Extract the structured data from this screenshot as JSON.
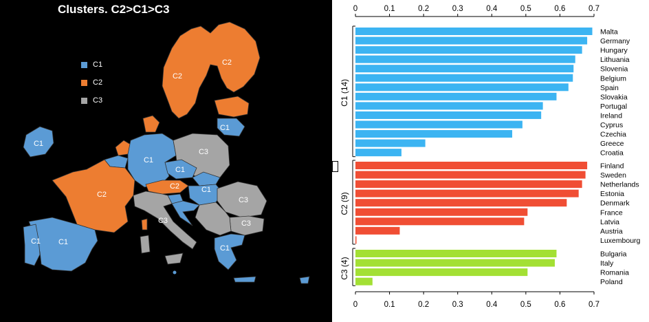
{
  "map": {
    "title": "Clusters. C2>C1>C3",
    "legend": [
      {
        "label": "C1",
        "color": "#5b9bd5"
      },
      {
        "label": "C2",
        "color": "#ed7d31"
      },
      {
        "label": "C3",
        "color": "#a5a5a5"
      }
    ],
    "region_labels": [
      "C2",
      "C2",
      "C1",
      "C1",
      "C3",
      "C1",
      "C1",
      "C2",
      "C1",
      "C2",
      "C3",
      "C3",
      "C3",
      "C1",
      "C1",
      "C1"
    ]
  },
  "chart_data": {
    "type": "bar",
    "orientation": "horizontal",
    "xlim": [
      0,
      0.7
    ],
    "xticks": [
      "0",
      "0.1",
      "0.2",
      "0.3",
      "0.4",
      "0.5",
      "0.6",
      "0.7"
    ],
    "groups": [
      {
        "label": "C1 (14)",
        "color": "#3cb4f2",
        "categories": [
          "Malta",
          "Germany",
          "Hungary",
          "Lithuania",
          "Slovenia",
          "Belgium",
          "Spain",
          "Slovakia",
          "Portugal",
          "Ireland",
          "Cyprus",
          "Czechia",
          "Greece",
          "Croatia"
        ],
        "values": [
          0.695,
          0.68,
          0.665,
          0.645,
          0.64,
          0.638,
          0.625,
          0.59,
          0.55,
          0.545,
          0.49,
          0.46,
          0.205,
          0.135
        ]
      },
      {
        "label": "C2 (9)",
        "color": "#f04e34",
        "categories": [
          "Finland",
          "Sweden",
          "Netherlands",
          "Estonia",
          "Denmark",
          "France",
          "Latvia",
          "Austria",
          "Luxembourg"
        ],
        "values": [
          0.68,
          0.675,
          0.665,
          0.655,
          0.62,
          0.505,
          0.495,
          0.13,
          0.003
        ]
      },
      {
        "label": "C3 (4)",
        "color": "#a3e034",
        "categories": [
          "Bulgaria",
          "Italy",
          "Romania",
          "Poland"
        ],
        "values": [
          0.59,
          0.585,
          0.505,
          0.05
        ]
      }
    ]
  }
}
